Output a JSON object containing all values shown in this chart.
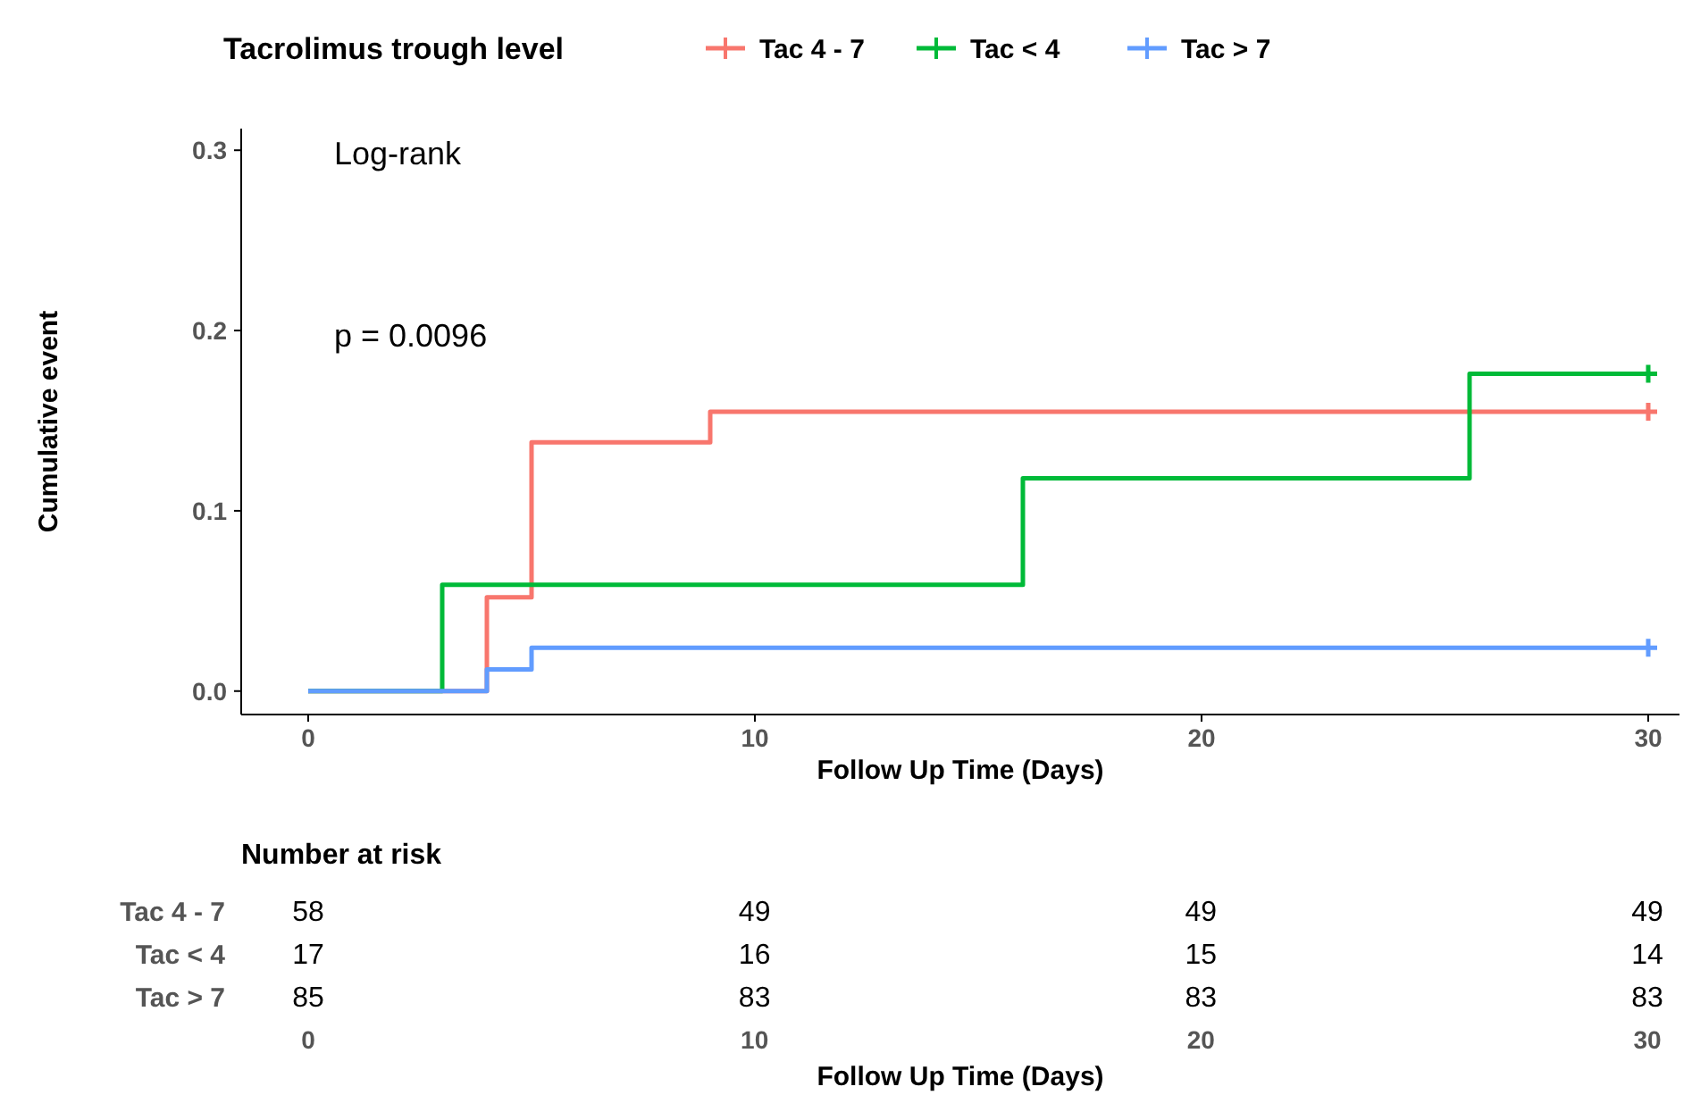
{
  "chart_data": [
    {
      "type": "step",
      "legend_title": "Tacrolimus trough level",
      "xlabel": "Follow Up Time (Days)",
      "ylabel": "Cumulative event",
      "annotations": [
        "Log-rank",
        "p = 0.0096"
      ],
      "xlim": [
        -1.5,
        30.7
      ],
      "ylim": [
        -0.013,
        0.312
      ],
      "xticks": [
        0,
        10,
        20,
        30
      ],
      "yticks": [
        {
          "value": 0,
          "label": "0.0"
        },
        0.1,
        0.2,
        0.3
      ],
      "grid": false,
      "legend": "top",
      "line_style": "solid",
      "series": [
        {
          "name": "Tac 4 - 7",
          "color": "#f8766d",
          "x": [
            0,
            4,
            5,
            9,
            30
          ],
          "values": [
            0,
            0.052,
            0.138,
            0.155,
            0.155
          ]
        },
        {
          "name": "Tac < 4",
          "color": "#00ba38",
          "x": [
            0,
            3,
            16,
            26,
            30
          ],
          "values": [
            0,
            0.059,
            0.118,
            0.176,
            0.176
          ]
        },
        {
          "name": "Tac > 7",
          "color": "#619cff",
          "x": [
            0,
            4,
            5,
            30
          ],
          "values": [
            0,
            0.012,
            0.024,
            0.024
          ]
        }
      ]
    },
    {
      "type": "heatmap",
      "title": "Number at risk",
      "data_labels": true,
      "xlabel": "Follow Up Time (Days)",
      "categories": [
        "0",
        "10",
        "20",
        "30"
      ],
      "y_categories": [
        "Tac 4 - 7",
        "Tac < 4",
        "Tac > 7"
      ],
      "cells": [
        [
          58,
          49,
          49,
          49
        ],
        [
          17,
          16,
          15,
          14
        ],
        [
          85,
          83,
          83,
          83
        ]
      ]
    }
  ]
}
